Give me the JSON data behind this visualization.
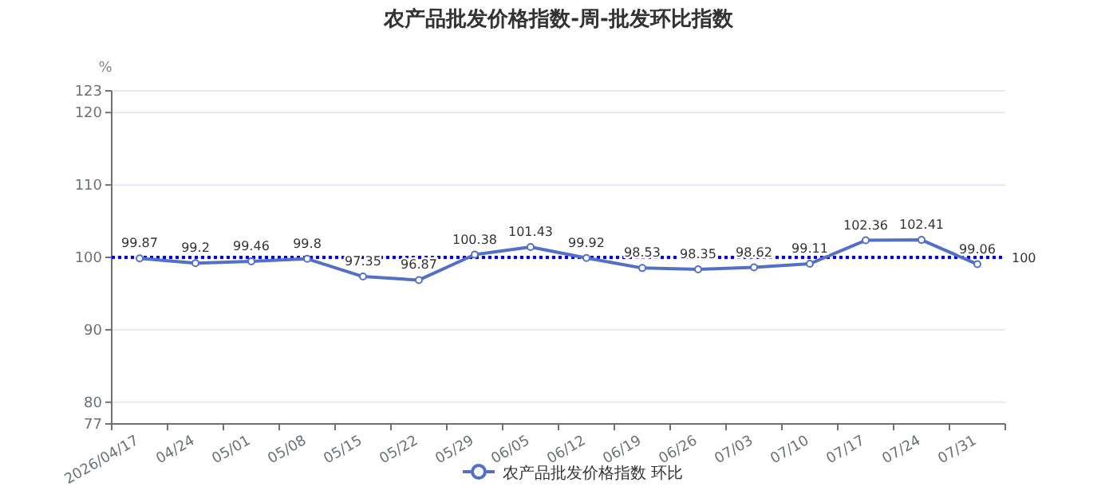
{
  "chart_data": {
    "type": "line",
    "title": "农产品批发价格指数-周-批发环比指数",
    "ylabel": "%",
    "categories": [
      "2026/04/17",
      "04/24",
      "05/01",
      "05/08",
      "05/15",
      "05/22",
      "05/29",
      "06/05",
      "06/12",
      "06/19",
      "06/26",
      "07/03",
      "07/10",
      "07/17",
      "07/24",
      "07/31"
    ],
    "series": [
      {
        "name": "农产品批发价格指数 环比",
        "color": "#5470c6",
        "values": [
          99.87,
          99.2,
          99.46,
          99.8,
          97.35,
          96.87,
          100.38,
          101.43,
          99.92,
          98.53,
          98.35,
          98.62,
          99.11,
          102.36,
          102.41,
          99.06
        ]
      }
    ],
    "ylim": [
      77,
      123
    ],
    "yticks": [
      77,
      80,
      90,
      100,
      110,
      120,
      123
    ],
    "ref_lines": [
      {
        "axis": "y",
        "value": 100,
        "label": "100",
        "color": "#0000ff",
        "line_style": "dotted"
      }
    ],
    "grid": "y",
    "legend": "bottom",
    "marker": "circle",
    "line_style": "solid",
    "data_labels": true
  }
}
